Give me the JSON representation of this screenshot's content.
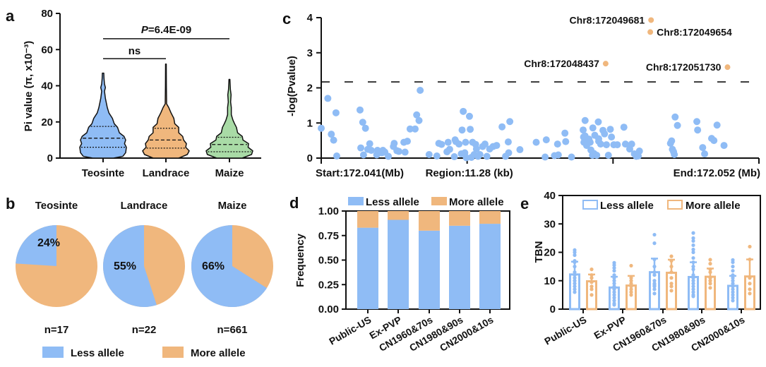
{
  "colors": {
    "blue": "#8fbcf5",
    "orange": "#f0b77d",
    "green": "#a9dba6",
    "axis": "#111111"
  },
  "panel_letters": [
    "a",
    "b",
    "c",
    "d",
    "e"
  ],
  "chart_data": [
    {
      "panel": "a",
      "type": "violin",
      "ylabel": "Pi value (π, x10⁻³)",
      "ylim": [
        0,
        80
      ],
      "yticks": [
        "0",
        "20",
        "40",
        "60",
        "80"
      ],
      "categories": [
        "Teosinte",
        "Landrace",
        "Maize"
      ],
      "violins": [
        {
          "name": "Teosinte",
          "color": "#8fbcf5",
          "min": 0,
          "max": 47,
          "q1": 6,
          "median": 11,
          "q3": 17.5
        },
        {
          "name": "Landrace",
          "color": "#f0b77d",
          "min": 0,
          "max": 52,
          "q1": 5.5,
          "median": 10,
          "q3": 16.5
        },
        {
          "name": "Maize",
          "color": "#a9dba6",
          "min": 0,
          "max": 43.5,
          "q1": 3.5,
          "median": 7.5,
          "q3": 11.5
        }
      ],
      "annotations": [
        {
          "label": "ns",
          "from": "Teosinte",
          "to": "Landrace",
          "y": 55
        },
        {
          "label_prefix": "P",
          "label": "=6.4E-09",
          "from": "Teosinte",
          "to": "Maize",
          "y": 66
        }
      ]
    },
    {
      "panel": "b",
      "type": "pie",
      "pies": [
        {
          "title": "Teosinte",
          "less_pct": 24,
          "label": "24%",
          "n": "n=17"
        },
        {
          "title": "Landrace",
          "less_pct": 55,
          "label": "55%",
          "n": "n=22"
        },
        {
          "title": "Maize",
          "less_pct": 66,
          "label": "66%",
          "n": "n=661"
        }
      ],
      "legend": [
        {
          "label": "Less allele",
          "color": "#8fbcf5"
        },
        {
          "label": "More allele",
          "color": "#f0b77d"
        }
      ],
      "legend_position": "bottom"
    },
    {
      "panel": "c",
      "type": "scatter",
      "ylabel": "-log(Pvalue)",
      "ylim": [
        0,
        4
      ],
      "yticks": [
        "0",
        "1",
        "2",
        "3",
        "4"
      ],
      "xlim": [
        0,
        11.28
      ],
      "xunit": "kb from start",
      "xtick_labels": [
        "Start:172.041(Mb)",
        "Region:11.28 (kb)",
        "End:172.052 (Mb)"
      ],
      "threshold": 2.17,
      "highlighted": [
        {
          "label": "Chr8:172049681",
          "x": 8.5,
          "y": 3.93,
          "label_side": "left"
        },
        {
          "label": "Chr8:172049654",
          "x": 8.48,
          "y": 3.59,
          "label_side": "right"
        },
        {
          "label": "Chr8:172048437",
          "x": 7.33,
          "y": 2.69,
          "label_side": "left"
        },
        {
          "label": "Chr8:172051730",
          "x": 10.47,
          "y": 2.59,
          "label_side": "left"
        }
      ],
      "points": [
        [
          0.0,
          0.85
        ],
        [
          0.17,
          1.7
        ],
        [
          0.26,
          0.68
        ],
        [
          0.32,
          0.51
        ],
        [
          0.38,
          1.29
        ],
        [
          0.4,
          0.06
        ],
        [
          1.0,
          1.37
        ],
        [
          1.02,
          0.29
        ],
        [
          1.07,
          1.02
        ],
        [
          1.09,
          0.09
        ],
        [
          1.14,
          0.85
        ],
        [
          1.2,
          0.25
        ],
        [
          1.25,
          0.41
        ],
        [
          1.29,
          0.22
        ],
        [
          1.43,
          0.09
        ],
        [
          1.45,
          0.22
        ],
        [
          1.56,
          0.15
        ],
        [
          1.59,
          0.22
        ],
        [
          1.64,
          0.17
        ],
        [
          1.73,
          0.05
        ],
        [
          1.86,
          0.33
        ],
        [
          1.88,
          0.42
        ],
        [
          1.95,
          0.21
        ],
        [
          2.0,
          0.19
        ],
        [
          2.13,
          0.45
        ],
        [
          2.16,
          0.17
        ],
        [
          2.22,
          0.48
        ],
        [
          2.29,
          0.83
        ],
        [
          2.42,
          0.83
        ],
        [
          2.46,
          1.23
        ],
        [
          2.52,
          1.07
        ],
        [
          2.55,
          1.93
        ],
        [
          2.78,
          0.1
        ],
        [
          2.98,
          0.06
        ],
        [
          3.03,
          0.42
        ],
        [
          3.1,
          0.39
        ],
        [
          3.24,
          0.18
        ],
        [
          3.27,
          0.45
        ],
        [
          3.31,
          0.25
        ],
        [
          3.43,
          0.04
        ],
        [
          3.45,
          0.52
        ],
        [
          3.47,
          0.47
        ],
        [
          3.55,
          0.4
        ],
        [
          3.61,
          0.12
        ],
        [
          3.63,
          0.8
        ],
        [
          3.66,
          1.33
        ],
        [
          3.7,
          0.15
        ],
        [
          3.72,
          0.45
        ],
        [
          3.74,
          0.01
        ],
        [
          3.82,
          1.19
        ],
        [
          3.84,
          0.82
        ],
        [
          3.87,
          0.02
        ],
        [
          3.9,
          0.45
        ],
        [
          3.94,
          0.1
        ],
        [
          3.98,
          0.39
        ],
        [
          4.0,
          0.26
        ],
        [
          4.04,
          0.05
        ],
        [
          4.09,
          0.1
        ],
        [
          4.16,
          0.33
        ],
        [
          4.22,
          0.4
        ],
        [
          4.27,
          0.05
        ],
        [
          4.34,
          0.26
        ],
        [
          4.43,
          0.33
        ],
        [
          4.52,
          0.36
        ],
        [
          4.66,
          0.89
        ],
        [
          4.75,
          0.05
        ],
        [
          4.82,
          0.46
        ],
        [
          4.83,
          0.15
        ],
        [
          4.86,
          1.04
        ],
        [
          5.12,
          0.24
        ],
        [
          5.54,
          0.45
        ],
        [
          5.77,
          0.03
        ],
        [
          5.8,
          0.52
        ],
        [
          6.01,
          0.07
        ],
        [
          6.09,
          0.4
        ],
        [
          6.11,
          0.09
        ],
        [
          6.28,
          0.71
        ],
        [
          6.3,
          0.47
        ],
        [
          6.45,
          0.03
        ],
        [
          6.8,
          1.07
        ],
        [
          6.93,
          0.45
        ],
        [
          6.99,
          0.08
        ],
        [
          7.0,
          0.1
        ],
        [
          7.03,
          0.13
        ],
        [
          7.14,
          1.03
        ],
        [
          7.15,
          0.48
        ],
        [
          6.75,
          0.8
        ],
        [
          6.76,
          0.6
        ],
        [
          6.77,
          0.45
        ],
        [
          6.8,
          0.63
        ],
        [
          6.84,
          0.36
        ],
        [
          6.88,
          0.47
        ],
        [
          6.9,
          0.54
        ],
        [
          6.95,
          0.23
        ],
        [
          7.0,
          0.86
        ],
        [
          7.05,
          0.65
        ],
        [
          7.1,
          0.08
        ],
        [
          7.15,
          0.55
        ],
        [
          7.2,
          0.4
        ],
        [
          7.26,
          0.79
        ],
        [
          7.3,
          0.69
        ],
        [
          7.35,
          0.38
        ],
        [
          7.4,
          0.08
        ],
        [
          7.45,
          0.82
        ],
        [
          7.48,
          0.6
        ],
        [
          7.54,
          0.38
        ],
        [
          7.63,
          0.38
        ],
        [
          7.8,
          0.88
        ],
        [
          7.84,
          0.4
        ],
        [
          7.95,
          0.26
        ],
        [
          8.0,
          0.4
        ],
        [
          8.07,
          0.12
        ],
        [
          8.12,
          0.05
        ],
        [
          8.17,
          0.06
        ],
        [
          8.2,
          0.2
        ],
        [
          9.0,
          0.42
        ],
        [
          9.03,
          0.49
        ],
        [
          9.05,
          0.25
        ],
        [
          9.08,
          0.18
        ],
        [
          9.1,
          0.1
        ],
        [
          9.12,
          1.17
        ],
        [
          9.18,
          0.93
        ],
        [
          9.68,
          1.04
        ],
        [
          9.7,
          0.8
        ],
        [
          9.83,
          0.3
        ],
        [
          9.88,
          0.12
        ],
        [
          10.06,
          0.56
        ],
        [
          10.12,
          0.5
        ],
        [
          10.2,
          0.94
        ],
        [
          10.38,
          0.36
        ]
      ]
    },
    {
      "panel": "d",
      "type": "bar",
      "stacked": true,
      "ylabel": "Frequency",
      "ylim": [
        0,
        1
      ],
      "yticks": [
        "0.00",
        "0.25",
        "0.50",
        "0.75",
        "1.00"
      ],
      "categories": [
        "Public-US",
        "Ex-PVP",
        "CN1960&70s",
        "CN1980&90s",
        "CN2000&10s"
      ],
      "series": [
        {
          "name": "Less allele",
          "color": "#8fbcf5",
          "values": [
            0.83,
            0.91,
            0.8,
            0.85,
            0.87
          ]
        },
        {
          "name": "More allele",
          "color": "#f0b77d",
          "values": [
            0.17,
            0.09,
            0.2,
            0.15,
            0.13
          ]
        }
      ],
      "legend_position": "top"
    },
    {
      "panel": "e",
      "type": "bar",
      "ylabel": "TBN",
      "ylim": [
        0,
        40
      ],
      "yticks": [
        "0",
        "10",
        "20",
        "30",
        "40"
      ],
      "categories": [
        "Public-US",
        "Ex-PVP",
        "CN1960&70s",
        "CN1980&90s",
        "CN2000&10s"
      ],
      "series": [
        {
          "name": "Less allele",
          "color": "#8fbcf5",
          "values": [
            12.2,
            7.6,
            13.0,
            11.3,
            8.2
          ],
          "sd": [
            4.5,
            3.8,
            4.8,
            5.2,
            3.5
          ],
          "points": [
            [
              20.8,
              20,
              19,
              17,
              16.5,
              15,
              13,
              12,
              11,
              10,
              9,
              8,
              7,
              6
            ],
            [
              16.3,
              15.5,
              14.5,
              13.5,
              12,
              11,
              10,
              9,
              8,
              7,
              6,
              5,
              4,
              3,
              2,
              1.5
            ],
            [
              26.2,
              23.2,
              17.5,
              15,
              13,
              12,
              10,
              9,
              8.5,
              8,
              7,
              5.5
            ],
            [
              26.8,
              25,
              24,
              22.5,
              21,
              20,
              18,
              16.5,
              15,
              14,
              12,
              11,
              10,
              9,
              8,
              7,
              6,
              5,
              4.5
            ],
            [
              17.3,
              16.5,
              15,
              13.5,
              12,
              11,
              10,
              9,
              8,
              7,
              6,
              5,
              4,
              3
            ]
          ]
        },
        {
          "name": "More allele",
          "color": "#f0b77d",
          "values": [
            9.8,
            8.3,
            12.8,
            11.4,
            11.5
          ],
          "sd": [
            2.4,
            3.4,
            4.6,
            2.9,
            6.0
          ],
          "points": [
            [
              14,
              12,
              11,
              9.5,
              8,
              7,
              5
            ],
            [
              15.3,
              11,
              10,
              9,
              8,
              7,
              6,
              5
            ],
            [
              18.6,
              17,
              15,
              13,
              11,
              9,
              8,
              6.5
            ],
            [
              17.4,
              16,
              14,
              13,
              11,
              10,
              9,
              7.5
            ],
            [
              22,
              17.5,
              11,
              9,
              7,
              5.5
            ]
          ]
        }
      ],
      "legend_position": "top-right"
    }
  ]
}
